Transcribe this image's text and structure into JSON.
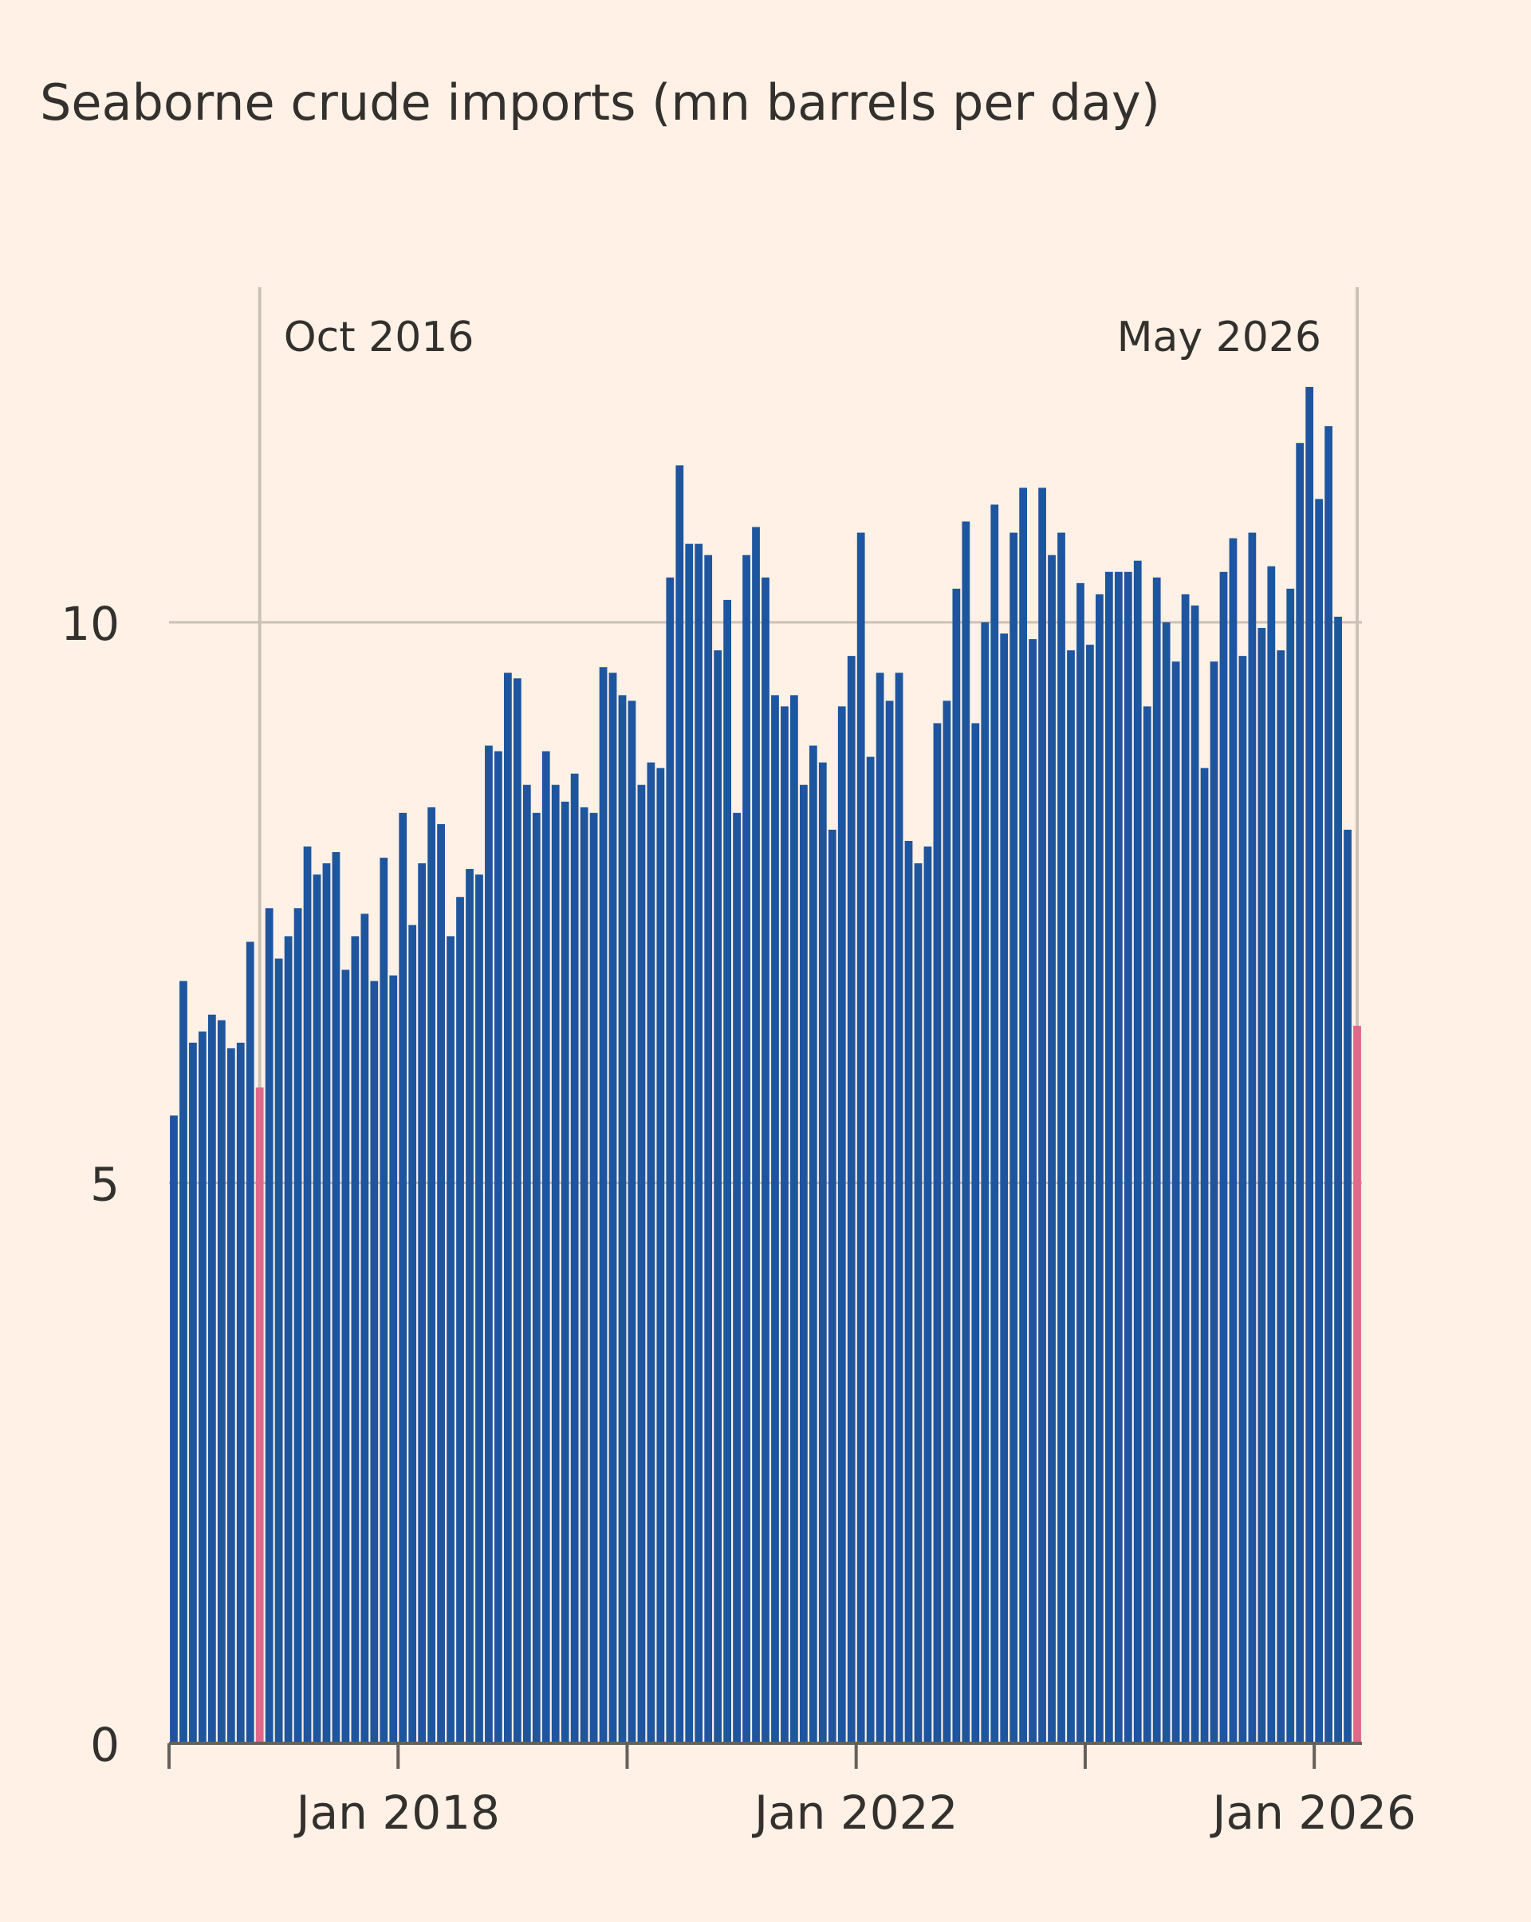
{
  "chart_data": {
    "type": "bar",
    "title": "Seaborne crude imports (mn barrels per day)",
    "xlabel": "",
    "ylabel": "",
    "ylim": [
      0,
      12.5
    ],
    "yticks": [
      0,
      5,
      10
    ],
    "x_tick_labels": [
      {
        "value": 0,
        "label": ""
      },
      {
        "value": 24,
        "label": "Jan 2018"
      },
      {
        "value": 48,
        "label": ""
      },
      {
        "value": 72,
        "label": "Jan 2022"
      },
      {
        "value": 96,
        "label": ""
      },
      {
        "value": 120,
        "label": "Jan 2026"
      }
    ],
    "annotations": [
      {
        "label": "Oct 2016",
        "index": 9
      },
      {
        "label": "May 2026",
        "index": 124
      }
    ],
    "colors": {
      "bar": "#1e559f",
      "highlight": "#e0688a",
      "grid": "#ccc1b7",
      "axis": "#66605c"
    },
    "highlight_indices": [
      9,
      124
    ],
    "values": [
      5.6,
      6.8,
      6.25,
      6.35,
      6.5,
      6.45,
      6.2,
      6.25,
      7.15,
      5.85,
      7.45,
      7.0,
      7.2,
      7.45,
      8.0,
      7.75,
      7.85,
      7.95,
      6.9,
      7.2,
      7.4,
      6.8,
      7.9,
      6.85,
      8.3,
      7.3,
      7.85,
      8.35,
      8.2,
      7.2,
      7.55,
      7.8,
      7.75,
      8.9,
      8.85,
      9.55,
      9.5,
      8.55,
      8.3,
      8.85,
      8.55,
      8.4,
      8.65,
      8.35,
      8.3,
      9.6,
      9.55,
      9.35,
      9.3,
      8.55,
      8.75,
      8.7,
      10.4,
      11.4,
      10.7,
      10.7,
      10.6,
      9.75,
      10.2,
      8.3,
      10.6,
      10.85,
      10.4,
      9.35,
      9.25,
      9.35,
      8.55,
      8.9,
      8.75,
      8.15,
      9.25,
      9.7,
      10.8,
      8.8,
      9.55,
      9.3,
      9.55,
      8.05,
      7.85,
      8.0,
      9.1,
      9.3,
      10.3,
      10.9,
      9.1,
      10.0,
      11.05,
      9.9,
      10.8,
      11.2,
      9.85,
      11.2,
      10.6,
      10.8,
      9.75,
      10.35,
      9.8,
      10.25,
      10.45,
      10.45,
      10.45,
      10.55,
      9.25,
      10.4,
      10.0,
      9.65,
      10.25,
      10.15,
      8.7,
      9.65,
      10.45,
      10.75,
      9.7,
      10.8,
      9.95,
      10.5,
      9.75,
      10.3,
      11.6,
      12.1,
      11.1,
      11.75,
      10.05,
      8.15,
      6.4
    ]
  }
}
